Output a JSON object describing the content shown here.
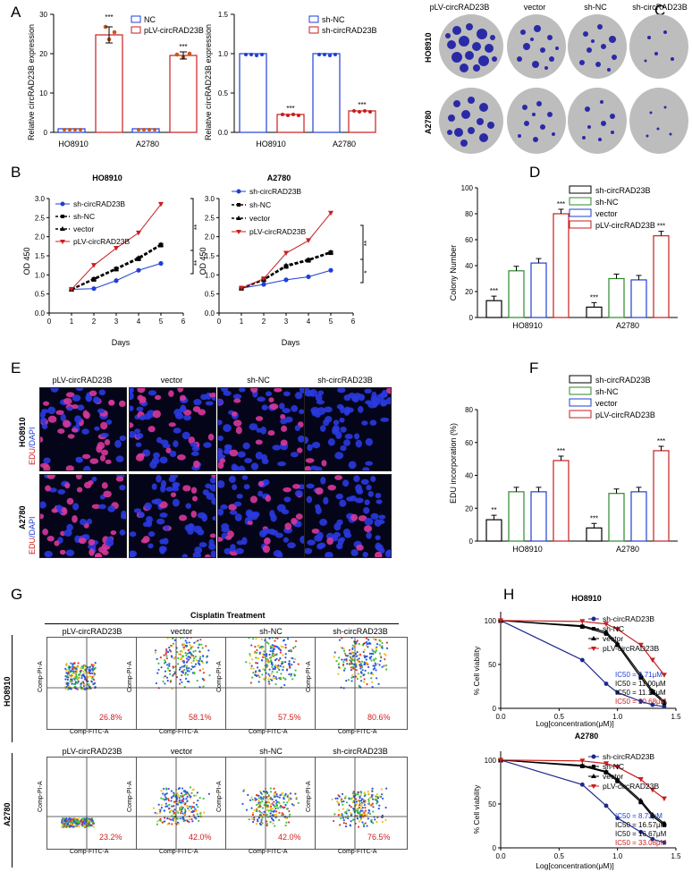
{
  "panels": {
    "A": "A",
    "B": "B",
    "C": "C",
    "D": "D",
    "E": "E",
    "F": "F",
    "G": "G",
    "H": "H"
  },
  "colors": {
    "blue": "#1f3fd6",
    "red": "#c81e1e",
    "green": "#2b8a2b",
    "black": "#000000",
    "navy": "#1a2a8a"
  },
  "panelA": {
    "ylabel": "Relative circRAD23B expression",
    "left": {
      "legend": [
        "NC",
        "pLV-circRAD23B"
      ],
      "categories": [
        "HO8910",
        "A2780"
      ],
      "ticks": [
        "0",
        "10",
        "20",
        "30"
      ],
      "sig": [
        "***",
        "***"
      ]
    },
    "right": {
      "legend": [
        "sh-NC",
        "sh-circRAD23B"
      ],
      "categories": [
        "HO8910",
        "A2780"
      ],
      "ticks": [
        "0.0",
        "0.5",
        "1.0",
        "1.5"
      ],
      "sig": [
        "***",
        "***"
      ]
    }
  },
  "panelC": {
    "columns": [
      "pLV-circRAD23B",
      "vector",
      "sh-NC",
      "sh-circRAD23B"
    ],
    "rows": [
      "HO8910",
      "A2780"
    ]
  },
  "panelB": {
    "xlabel": "Days",
    "ylabel": "OD 450",
    "legend": [
      "sh-circRAD23B",
      "sh-NC",
      "vector",
      "pLV-circRAD23B"
    ],
    "xticks": [
      "0",
      "1",
      "2",
      "3",
      "4",
      "5",
      "6"
    ],
    "yticks": [
      "0.0",
      "0.5",
      "1.0",
      "1.5",
      "2.0",
      "2.5",
      "3.0"
    ],
    "left": {
      "title": "HO8910",
      "sig": [
        "**",
        "**"
      ]
    },
    "right": {
      "title": "A2780",
      "sig": [
        "**",
        "*"
      ]
    }
  },
  "panelD": {
    "ylabel": "Colony Number",
    "legend": [
      "sh-circRAD23B",
      "sh-NC",
      "vector",
      "pLV-circRAD23B"
    ],
    "categories": [
      "HO8910",
      "A2780"
    ],
    "yticks": [
      "0",
      "20",
      "40",
      "60",
      "80",
      "100"
    ],
    "sig": [
      "***",
      "***",
      "***",
      "***"
    ]
  },
  "panelE": {
    "columns": [
      "pLV-circRAD23B",
      "vector",
      "sh-NC",
      "sh-circRAD23B"
    ],
    "rows": [
      "HO8910",
      "A2780"
    ],
    "stain_edu": "EDU",
    "stain_dapi": "/DAPI"
  },
  "panelF": {
    "ylabel": "EDU incorporation (%)",
    "legend": [
      "sh-circRAD23B",
      "sh-NC",
      "vector",
      "pLV-circRAD23B"
    ],
    "categories": [
      "HO8910",
      "A2780"
    ],
    "yticks": [
      "0",
      "20",
      "40",
      "60",
      "80"
    ],
    "sig": [
      "**",
      "***",
      "***",
      "***"
    ]
  },
  "panelG": {
    "header": "Cisplatin Treatment",
    "columns": [
      "pLV-circRAD23B",
      "vector",
      "sh-NC",
      "sh-circRAD23B"
    ],
    "rows": [
      "HO8910",
      "A2780"
    ],
    "xaxis": "Comp-FITC-A",
    "yaxis": "Comp-PI-A",
    "percents_row1": [
      "26.8%",
      "58.1%",
      "57.5%",
      "80.6%"
    ],
    "percents_row2": [
      "23.2%",
      "42.0%",
      "42.0%",
      "76.5%"
    ]
  },
  "panelH": {
    "xlabel": "Log[concentration(μM)]",
    "ylabel": "% Cell viability",
    "legend": [
      "sh-circRAD23B",
      "sh-NC",
      "vector",
      "pLV-circRAD23B"
    ],
    "xticks": [
      "0.0",
      "0.5",
      "1.0",
      "1.5"
    ],
    "yticks": [
      "0",
      "50",
      "100"
    ],
    "top": {
      "title": "HO8910",
      "ic50": [
        "IC50 = 5.71μM",
        "IC50 = 11.00μM",
        "IC50 = 11.18μM",
        "IC50 = 20.68μM"
      ]
    },
    "bottom": {
      "title": "A2780",
      "ic50": [
        "IC50 = 8.73μM",
        "IC50 = 16.57μM",
        "IC50 = 16.67μM",
        "IC50 = 33.08μM"
      ]
    }
  },
  "chart_data": [
    {
      "type": "bar",
      "panel": "A-left",
      "ylabel": "Relative circRAD23B expression",
      "categories": [
        "HO8910",
        "A2780"
      ],
      "ylim": [
        0,
        30
      ],
      "series": [
        {
          "name": "NC",
          "values": [
            1,
            1
          ]
        },
        {
          "name": "pLV-circRAD23B",
          "values": [
            24.8,
            19.6
          ]
        }
      ]
    },
    {
      "type": "bar",
      "panel": "A-right",
      "ylabel": "Relative circRAD23B expression",
      "categories": [
        "HO8910",
        "A2780"
      ],
      "ylim": [
        0,
        1.5
      ],
      "series": [
        {
          "name": "sh-NC",
          "values": [
            1.0,
            1.0
          ]
        },
        {
          "name": "sh-circRAD23B",
          "values": [
            0.23,
            0.27
          ]
        }
      ]
    },
    {
      "type": "line",
      "panel": "B-left",
      "title": "HO8910",
      "xlabel": "Days",
      "ylabel": "OD 450",
      "x": [
        1,
        2,
        3,
        4,
        5
      ],
      "xlim": [
        0,
        6
      ],
      "ylim": [
        0,
        3
      ],
      "series": [
        {
          "name": "sh-circRAD23B",
          "values": [
            0.62,
            0.64,
            0.85,
            1.12,
            1.3
          ]
        },
        {
          "name": "sh-NC",
          "values": [
            0.62,
            0.88,
            1.15,
            1.42,
            1.78
          ]
        },
        {
          "name": "vector",
          "values": [
            0.62,
            0.9,
            1.17,
            1.45,
            1.8
          ]
        },
        {
          "name": "pLV-circRAD23B",
          "values": [
            0.62,
            1.25,
            1.7,
            2.1,
            2.85
          ]
        }
      ]
    },
    {
      "type": "line",
      "panel": "B-right",
      "title": "A2780",
      "xlabel": "Days",
      "ylabel": "OD 450",
      "x": [
        1,
        2,
        3,
        4,
        5
      ],
      "xlim": [
        0,
        6
      ],
      "ylim": [
        0,
        3
      ],
      "series": [
        {
          "name": "sh-circRAD23B",
          "values": [
            0.65,
            0.75,
            0.87,
            0.95,
            1.12
          ]
        },
        {
          "name": "sh-NC",
          "values": [
            0.65,
            0.87,
            1.22,
            1.38,
            1.58
          ]
        },
        {
          "name": "vector",
          "values": [
            0.65,
            0.88,
            1.25,
            1.4,
            1.6
          ]
        },
        {
          "name": "pLV-circRAD23B",
          "values": [
            0.65,
            0.9,
            1.57,
            1.9,
            2.62
          ]
        }
      ]
    },
    {
      "type": "bar",
      "panel": "D",
      "ylabel": "Colony Number",
      "categories": [
        "HO8910",
        "A2780"
      ],
      "ylim": [
        0,
        100
      ],
      "series": [
        {
          "name": "sh-circRAD23B",
          "values": [
            13,
            8
          ]
        },
        {
          "name": "sh-NC",
          "values": [
            36,
            30
          ]
        },
        {
          "name": "vector",
          "values": [
            42,
            29
          ]
        },
        {
          "name": "pLV-circRAD23B",
          "values": [
            80,
            63
          ]
        }
      ]
    },
    {
      "type": "bar",
      "panel": "F",
      "ylabel": "EDU incorporation (%)",
      "categories": [
        "HO8910",
        "A2780"
      ],
      "ylim": [
        0,
        80
      ],
      "series": [
        {
          "name": "sh-circRAD23B",
          "values": [
            13,
            8
          ]
        },
        {
          "name": "sh-NC",
          "values": [
            30,
            29
          ]
        },
        {
          "name": "vector",
          "values": [
            30,
            30
          ]
        },
        {
          "name": "pLV-circRAD23B",
          "values": [
            49,
            55
          ]
        }
      ]
    },
    {
      "type": "line",
      "panel": "H-top",
      "title": "HO8910",
      "xlabel": "Log[concentration(μM)]",
      "ylabel": "% Cell viability",
      "xlim": [
        0,
        1.5
      ],
      "ylim": [
        0,
        110
      ],
      "x": [
        0,
        0.699,
        0.903,
        1.0,
        1.2,
        1.3,
        1.4
      ],
      "series": [
        {
          "name": "sh-circRAD23B",
          "values": [
            100,
            55,
            28,
            18,
            8,
            4,
            2
          ]
        },
        {
          "name": "sh-NC",
          "values": [
            100,
            93,
            85,
            72,
            35,
            18,
            6
          ]
        },
        {
          "name": "vector",
          "values": [
            100,
            94,
            87,
            74,
            38,
            20,
            8
          ]
        },
        {
          "name": "pLV-circRAD23B",
          "values": [
            100,
            99,
            96,
            90,
            72,
            55,
            38
          ]
        }
      ]
    },
    {
      "type": "line",
      "panel": "H-bottom",
      "title": "A2780",
      "xlabel": "Log[concentration(μM)]",
      "ylabel": "% Cell viability",
      "xlim": [
        0,
        1.5
      ],
      "ylim": [
        0,
        110
      ],
      "x": [
        0,
        0.699,
        0.903,
        1.0,
        1.2,
        1.3,
        1.4
      ],
      "series": [
        {
          "name": "sh-circRAD23B",
          "values": [
            100,
            72,
            48,
            34,
            18,
            10,
            6
          ]
        },
        {
          "name": "sh-NC",
          "values": [
            100,
            93,
            86,
            76,
            52,
            36,
            26
          ]
        },
        {
          "name": "vector",
          "values": [
            100,
            94,
            87,
            78,
            54,
            38,
            28
          ]
        },
        {
          "name": "pLV-circRAD23B",
          "values": [
            100,
            99,
            96,
            92,
            78,
            66,
            56
          ]
        }
      ]
    }
  ]
}
